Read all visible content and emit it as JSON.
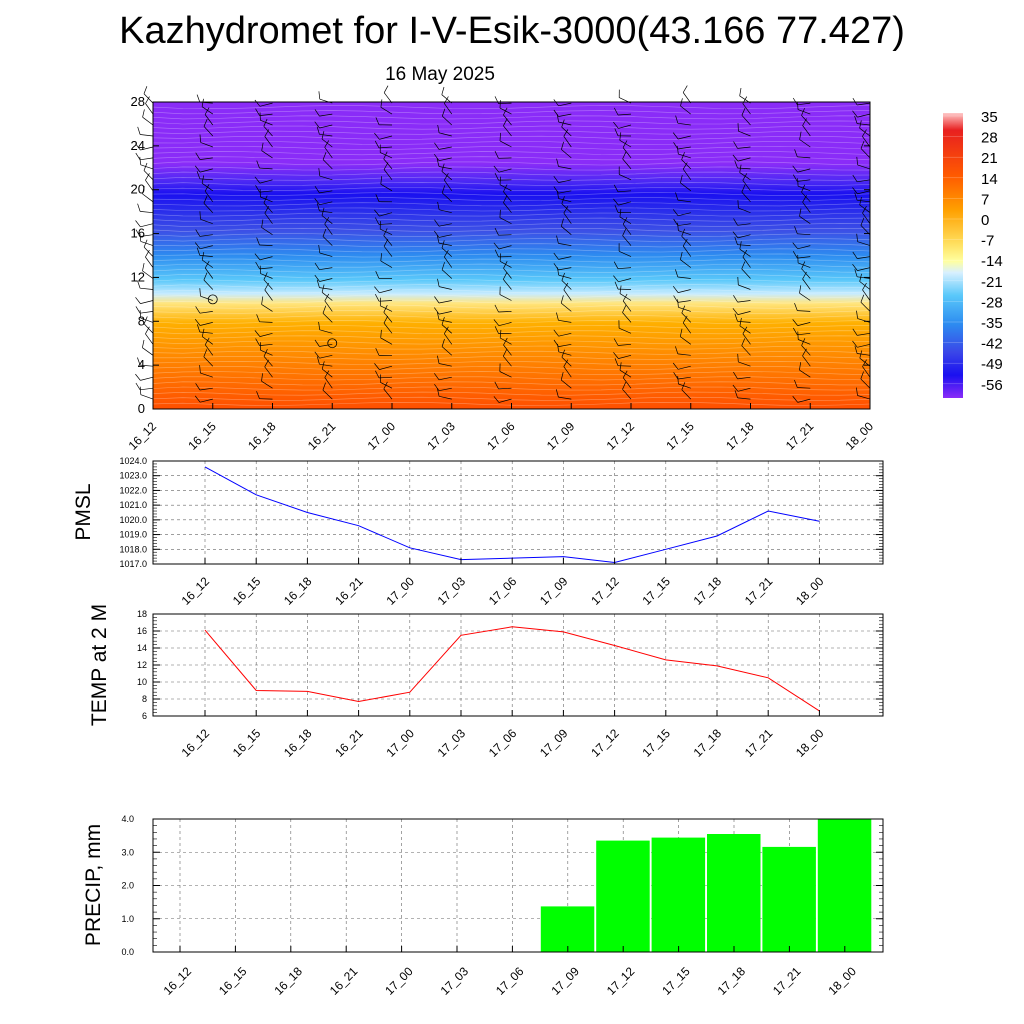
{
  "header": {
    "title": "Kazhydromet for I-V-Esik-3000(43.166 77.427)",
    "date": "16 May 2025"
  },
  "chart_data": [
    {
      "type": "heatmap",
      "name": "vertical-profile",
      "x_ticks": [
        "16_12",
        "16_15",
        "16_18",
        "16_21",
        "17_00",
        "17_03",
        "17_06",
        "17_09",
        "17_12",
        "17_15",
        "17_18",
        "17_21",
        "18_00"
      ],
      "y_ticks": [
        0,
        4,
        8,
        12,
        16,
        20,
        24,
        28
      ],
      "ylim": [
        0,
        28
      ],
      "colorbar": {
        "labels": [
          35,
          28,
          21,
          14,
          7,
          0,
          -7,
          -14,
          -21,
          -28,
          -35,
          -42,
          -49,
          -56
        ]
      },
      "calm_markers": [
        {
          "x": "16_15",
          "y": 10
        },
        {
          "x": "16_21",
          "y": 6
        }
      ]
    },
    {
      "type": "line",
      "name": "pmsl",
      "ylabel": "PMSL",
      "x": [
        "16_12",
        "16_15",
        "16_18",
        "16_21",
        "17_00",
        "17_03",
        "17_06",
        "17_09",
        "17_12",
        "17_15",
        "17_18",
        "17_21",
        "18_00"
      ],
      "values": [
        1023.6,
        1021.7,
        1020.5,
        1019.6,
        1018.1,
        1017.3,
        1017.4,
        1017.5,
        1017.1,
        1018.0,
        1018.9,
        1020.6,
        1019.9
      ],
      "yticks": [
        "1017.0",
        "1018.0",
        "1019.0",
        "1020.0",
        "1021.0",
        "1022.0",
        "1023.0",
        "1024.0"
      ],
      "ylim": [
        1017,
        1024
      ],
      "color": "#0000ff",
      "grid": true
    },
    {
      "type": "line",
      "name": "temp2m",
      "ylabel": "TEMP at 2 M",
      "x": [
        "16_12",
        "16_15",
        "16_18",
        "16_21",
        "17_00",
        "17_03",
        "17_06",
        "17_09",
        "17_12",
        "17_15",
        "17_18",
        "17_21",
        "18_00"
      ],
      "values": [
        16.1,
        9.0,
        8.9,
        7.7,
        8.8,
        15.5,
        16.5,
        15.9,
        14.3,
        12.6,
        11.9,
        10.5,
        6.6
      ],
      "yticks": [
        "6",
        "8",
        "10",
        "12",
        "14",
        "16",
        "18"
      ],
      "ylim": [
        6,
        18
      ],
      "color": "#ff0000",
      "grid": true
    },
    {
      "type": "bar",
      "name": "precip",
      "ylabel": "PRECIP, mm",
      "categories": [
        "16_12",
        "16_15",
        "16_18",
        "16_21",
        "17_00",
        "17_03",
        "17_06",
        "17_09",
        "17_12",
        "17_15",
        "17_18",
        "17_21",
        "18_00"
      ],
      "values": [
        0,
        0,
        0,
        0,
        0,
        0,
        0,
        1.37,
        3.35,
        3.44,
        3.55,
        3.16,
        4.0
      ],
      "yticks": [
        "0.0",
        "1.0",
        "2.0",
        "3.0",
        "4.0"
      ],
      "ylim": [
        0,
        4
      ],
      "color": "#00ff00",
      "grid": true
    }
  ]
}
